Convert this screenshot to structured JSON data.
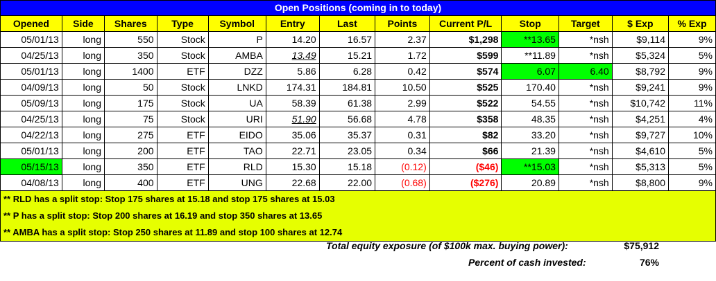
{
  "title": "Open Positions (coming in to today)",
  "headers": [
    "Opened",
    "Side",
    "Shares",
    "Type",
    "Symbol",
    "Entry",
    "Last",
    "Points",
    "Current P/L",
    "Stop",
    "Target",
    "$ Exp",
    "% Exp"
  ],
  "rows": [
    {
      "opened": "05/01/13",
      "side": "long",
      "shares": "550",
      "type": "Stock",
      "symbol": "P",
      "entry": "14.20",
      "last": "16.57",
      "points": "2.37",
      "pl": "$1,298",
      "stop": "**13.65",
      "target": "*nsh",
      "exp": "$9,114",
      "pexp": "9%"
    },
    {
      "opened": "04/25/13",
      "side": "long",
      "shares": "350",
      "type": "Stock",
      "symbol": "AMBA",
      "entry": "13.49",
      "last": "15.21",
      "points": "1.72",
      "pl": "$599",
      "stop": "**11.89",
      "target": "*nsh",
      "exp": "$5,324",
      "pexp": "5%"
    },
    {
      "opened": "05/01/13",
      "side": "long",
      "shares": "1400",
      "type": "ETF",
      "symbol": "DZZ",
      "entry": "5.86",
      "last": "6.28",
      "points": "0.42",
      "pl": "$574",
      "stop": "6.07",
      "target": "6.40",
      "exp": "$8,792",
      "pexp": "9%"
    },
    {
      "opened": "04/09/13",
      "side": "long",
      "shares": "50",
      "type": "Stock",
      "symbol": "LNKD",
      "entry": "174.31",
      "last": "184.81",
      "points": "10.50",
      "pl": "$525",
      "stop": "170.40",
      "target": "*nsh",
      "exp": "$9,241",
      "pexp": "9%"
    },
    {
      "opened": "05/09/13",
      "side": "long",
      "shares": "175",
      "type": "Stock",
      "symbol": "UA",
      "entry": "58.39",
      "last": "61.38",
      "points": "2.99",
      "pl": "$522",
      "stop": "54.55",
      "target": "*nsh",
      "exp": "$10,742",
      "pexp": "11%"
    },
    {
      "opened": "04/25/13",
      "side": "long",
      "shares": "75",
      "type": "Stock",
      "symbol": "URI",
      "entry": "51.90",
      "last": "56.68",
      "points": "4.78",
      "pl": "$358",
      "stop": "48.35",
      "target": "*nsh",
      "exp": "$4,251",
      "pexp": "4%"
    },
    {
      "opened": "04/22/13",
      "side": "long",
      "shares": "275",
      "type": "ETF",
      "symbol": "EIDO",
      "entry": "35.06",
      "last": "35.37",
      "points": "0.31",
      "pl": "$82",
      "stop": "33.20",
      "target": "*nsh",
      "exp": "$9,727",
      "pexp": "10%"
    },
    {
      "opened": "05/01/13",
      "side": "long",
      "shares": "200",
      "type": "ETF",
      "symbol": "TAO",
      "entry": "22.71",
      "last": "23.05",
      "points": "0.34",
      "pl": "$66",
      "stop": "21.39",
      "target": "*nsh",
      "exp": "$4,610",
      "pexp": "5%"
    },
    {
      "opened": "05/15/13",
      "side": "long",
      "shares": "350",
      "type": "ETF",
      "symbol": "RLD",
      "entry": "15.30",
      "last": "15.18",
      "points": "(0.12)",
      "pl": "($46)",
      "stop": "**15.03",
      "target": "*nsh",
      "exp": "$5,313",
      "pexp": "5%"
    },
    {
      "opened": "04/08/13",
      "side": "long",
      "shares": "400",
      "type": "ETF",
      "symbol": "UNG",
      "entry": "22.68",
      "last": "22.00",
      "points": "(0.68)",
      "pl": "($276)",
      "stop": "20.89",
      "target": "*nsh",
      "exp": "$8,800",
      "pexp": "9%"
    }
  ],
  "notes": [
    "** RLD has a split stop: Stop 175 shares at 15.18 and stop 175 shares at 15.03",
    "** P has a split stop: Stop 200 shares at 16.19 and stop 350 shares at 13.65",
    "** AMBA has a split stop: Stop 250 shares at 11.89 and stop 100 shares at 12.74"
  ],
  "summary": {
    "exposure_label": "Total equity exposure (of $100k max. buying power):",
    "exposure_value": "$75,912",
    "invested_label": "Percent of cash invested:",
    "invested_value": "76%"
  },
  "colors": {
    "title_bg": "#0000ff",
    "header_bg": "#ffff00",
    "highlight": "#00ff00",
    "negative": "#ff0000",
    "notes_bg": "#e6ff00"
  }
}
